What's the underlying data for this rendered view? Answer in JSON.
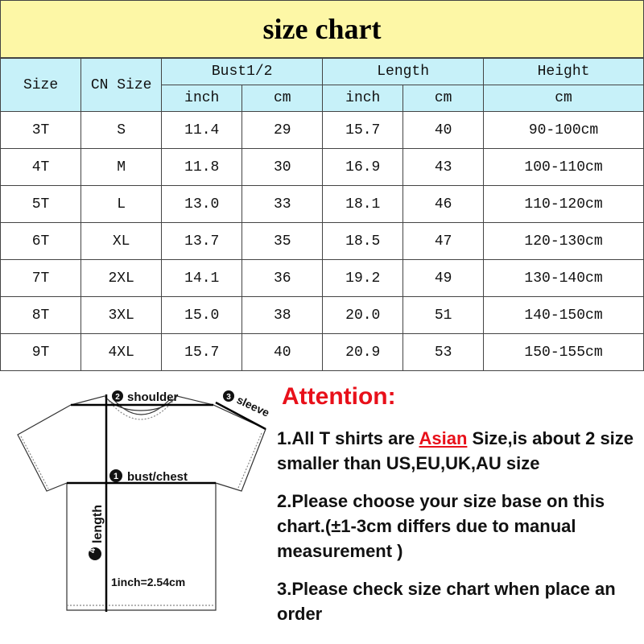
{
  "title": "size chart",
  "table": {
    "headers": {
      "size": "Size",
      "cn_size": "CN Size",
      "bust": "Bust1/2",
      "length": "Length",
      "height": "Height",
      "inch": "inch",
      "cm": "cm"
    },
    "rows": [
      [
        "3T",
        "S",
        "11.4",
        "29",
        "15.7",
        "40",
        "90-100cm"
      ],
      [
        "4T",
        "M",
        "11.8",
        "30",
        "16.9",
        "43",
        "100-110cm"
      ],
      [
        "5T",
        "L",
        "13.0",
        "33",
        "18.1",
        "46",
        "110-120cm"
      ],
      [
        "6T",
        "XL",
        "13.7",
        "35",
        "18.5",
        "47",
        "120-130cm"
      ],
      [
        "7T",
        "2XL",
        "14.1",
        "36",
        "19.2",
        "49",
        "130-140cm"
      ],
      [
        "8T",
        "3XL",
        "15.0",
        "38",
        "20.0",
        "51",
        "140-150cm"
      ],
      [
        "9T",
        "4XL",
        "15.7",
        "40",
        "20.9",
        "53",
        "150-155cm"
      ]
    ]
  },
  "diagram": {
    "shoulder": "shoulder",
    "sleeve": "sleeve",
    "bust": "bust/chest",
    "length": "length",
    "conversion": "1inch=2.54cm",
    "n1": "1",
    "n2": "2",
    "n3": "3",
    "n4": "4"
  },
  "attention": {
    "heading": "Attention:",
    "note1_pre": "1.All T shirts are ",
    "note1_highlight": "Asian",
    "note1_post": " Size,is about 2 size smaller than US,EU,UK,AU size",
    "note2": "2.Please choose your size base on this chart.(±1-3cm differs due to manual measurement )",
    "note3": "3.Please check size chart when place an order"
  },
  "colors": {
    "title_bg": "#fdf7a6",
    "header_bg": "#c7f1f9",
    "accent_red": "#e8101a"
  }
}
